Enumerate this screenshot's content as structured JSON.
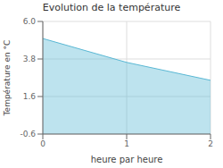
{
  "chart_data": {
    "type": "area",
    "title": "Evolution de la température",
    "xlabel": "heure par heure",
    "ylabel": "Température en °C",
    "x": [
      0,
      1,
      2
    ],
    "values": [
      5.0,
      3.6,
      2.55
    ],
    "color": "#5bb8d4",
    "xlim": [
      0,
      2
    ],
    "xticks": [
      0,
      1,
      2
    ],
    "ylim": [
      -0.6,
      6.0
    ],
    "yticks": [
      -0.6,
      1.6,
      3.8,
      {
        "value": 6.0,
        "label": "6.0"
      }
    ],
    "grid": true
  }
}
